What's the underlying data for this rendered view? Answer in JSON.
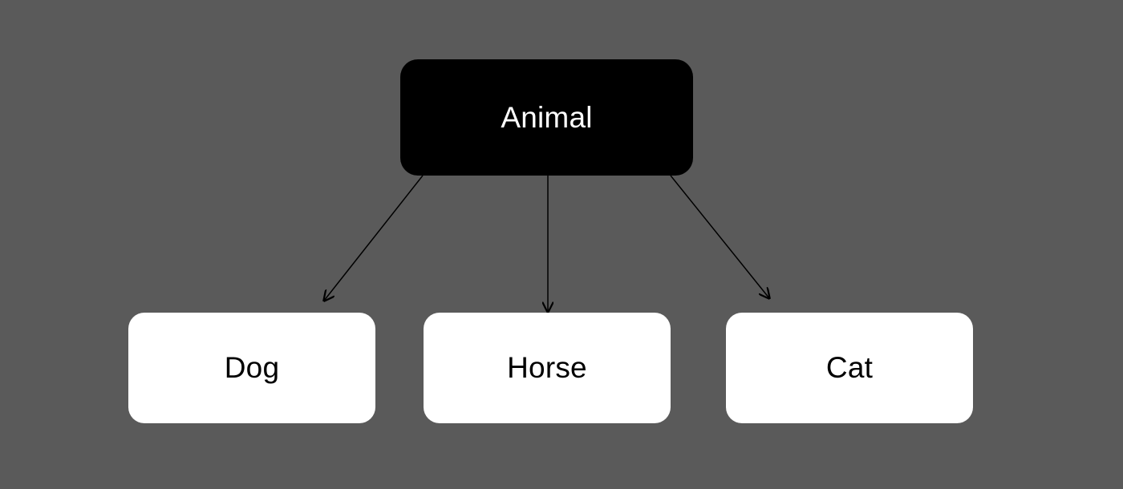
{
  "diagram": {
    "root": {
      "label": "Animal",
      "fill": "#000000",
      "text_color": "#ffffff"
    },
    "children": [
      {
        "label": "Dog"
      },
      {
        "label": "Horse"
      },
      {
        "label": "Cat"
      }
    ],
    "edges": [
      {
        "from": "Animal",
        "to": "Dog"
      },
      {
        "from": "Animal",
        "to": "Horse"
      },
      {
        "from": "Animal",
        "to": "Cat"
      }
    ],
    "colors": {
      "background": "#5a5a5a",
      "child_fill": "#ffffff",
      "child_text": "#000000",
      "arrow": "#000000"
    }
  }
}
